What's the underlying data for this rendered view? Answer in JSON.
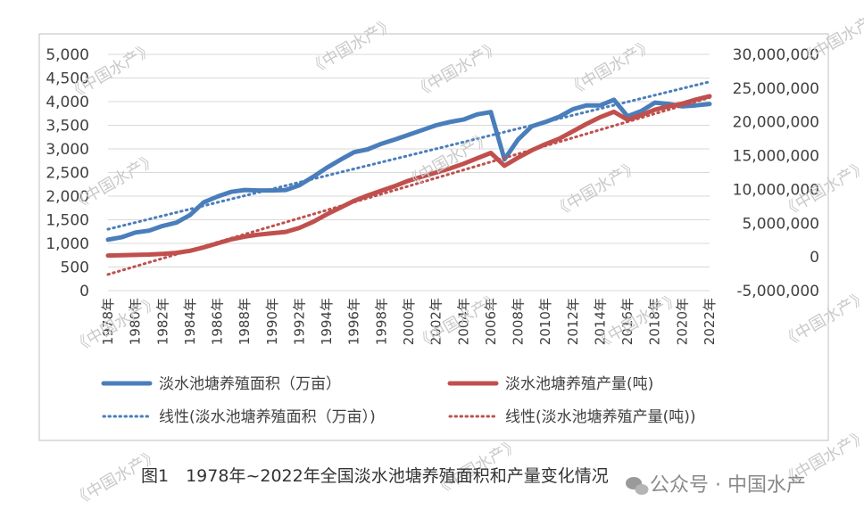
{
  "watermark": "《中国水产》",
  "caption": "图1　1978年~2022年全国淡水池塘养殖面积和产量变化情况",
  "badge": {
    "label": "公众号 · 中国水产"
  },
  "chart_data": {
    "type": "line",
    "title": "",
    "x_categories": [
      "1978年",
      "1979年",
      "1980年",
      "1981年",
      "1982年",
      "1983年",
      "1984年",
      "1985年",
      "1986年",
      "1987年",
      "1988年",
      "1989年",
      "1990年",
      "1991年",
      "1992年",
      "1993年",
      "1994年",
      "1995年",
      "1996年",
      "1997年",
      "1998年",
      "1999年",
      "2000年",
      "2001年",
      "2002年",
      "2003年",
      "2004年",
      "2005年",
      "2006年",
      "2007年",
      "2008年",
      "2009年",
      "2010年",
      "2011年",
      "2012年",
      "2013年",
      "2014年",
      "2015年",
      "2016年",
      "2017年",
      "2018年",
      "2019年",
      "2020年",
      "2021年",
      "2022年"
    ],
    "x_tick_labels": [
      "1978年",
      "1980年",
      "1982年",
      "1984年",
      "1986年",
      "1988年",
      "1990年",
      "1992年",
      "1994年",
      "1996年",
      "1998年",
      "2000年",
      "2002年",
      "2004年",
      "2006年",
      "2008年",
      "2010年",
      "2012年",
      "2014年",
      "2016年",
      "2018年",
      "2020年",
      "2022年"
    ],
    "y_left": {
      "range": [
        0,
        5000
      ],
      "ticks": [
        "0",
        "500",
        "1,000",
        "1,500",
        "2,000",
        "2,500",
        "3,000",
        "3,500",
        "4,000",
        "4,500",
        "5,000"
      ]
    },
    "y_right": {
      "range": [
        -5000000,
        30000000
      ],
      "ticks": [
        "-5,000,000",
        "0",
        "5,000,000",
        "10,000,000",
        "15,000,000",
        "20,000,000",
        "25,000,000",
        "30,000,000"
      ]
    },
    "grid": true,
    "legend_position": "bottom",
    "series": [
      {
        "name": "淡水池塘养殖面积（万亩）",
        "axis": "left",
        "color": "#4a7ebb",
        "style": "solid",
        "values": [
          1080,
          1130,
          1230,
          1270,
          1370,
          1440,
          1600,
          1870,
          1990,
          2090,
          2130,
          2120,
          2120,
          2130,
          2230,
          2410,
          2600,
          2770,
          2930,
          2990,
          3110,
          3200,
          3300,
          3400,
          3500,
          3570,
          3620,
          3730,
          3780,
          2780,
          3200,
          3480,
          3570,
          3680,
          3840,
          3920,
          3920,
          4040,
          3690,
          3800,
          3980,
          3950,
          3900,
          3920,
          3950
        ]
      },
      {
        "name": "淡水池塘养殖产量(吨)",
        "axis": "right",
        "color": "#c0504d",
        "style": "solid",
        "values": [
          200000,
          250000,
          300000,
          350000,
          450000,
          600000,
          900000,
          1400000,
          2000000,
          2600000,
          3000000,
          3300000,
          3500000,
          3700000,
          4300000,
          5200000,
          6300000,
          7300000,
          8300000,
          9100000,
          9800000,
          10500000,
          11300000,
          11900000,
          12500000,
          13100000,
          13800000,
          14600000,
          15400000,
          13500000,
          14700000,
          15800000,
          16700000,
          17500000,
          18600000,
          19700000,
          20700000,
          21500000,
          20300000,
          21000000,
          21800000,
          22300000,
          22700000,
          23300000,
          23800000
        ]
      },
      {
        "name": "线性(淡水池塘养殖面积（万亩）)",
        "axis": "left",
        "color": "#4a7ebb",
        "style": "dotted",
        "trend_of": "淡水池塘养殖面积（万亩）",
        "start": 1300,
        "end": 4420
      },
      {
        "name": "线性(淡水池塘养殖产量(吨))",
        "axis": "right",
        "color": "#c0504d",
        "style": "dotted",
        "trend_of": "淡水池塘养殖产量(吨)",
        "start": -2600000,
        "end": 23600000
      }
    ]
  }
}
